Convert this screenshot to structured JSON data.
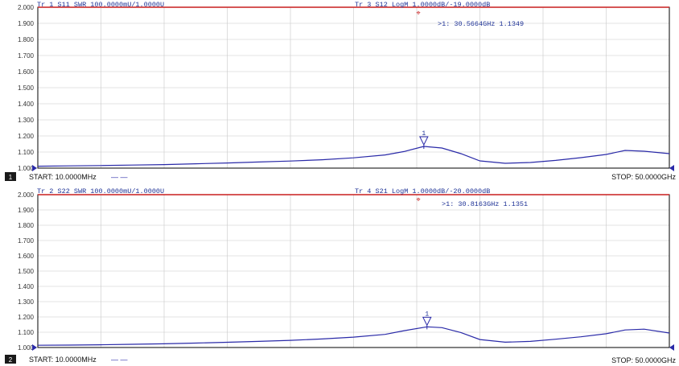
{
  "colors": {
    "background": "#ffffff",
    "grid": "#c8c8c8",
    "frame": "#000000",
    "trace_swr": "#2a2aa8",
    "trace_logm": "#c81e1e",
    "header_text": "#1e3296",
    "axis_text": "#333333",
    "footer_text": "#111111",
    "marker_text": "#1e3296"
  },
  "panels": [
    {
      "channel": "1",
      "header_left": "Tr 1  S11 SWR 100.0000mU/1.0000U",
      "header_right": "Tr 3  S12 LogM 1.0000dB/-19.0000dB",
      "marker_readout": ">1:   30.5664GHz 1.1349",
      "marker_label": "1",
      "start": "START: 10.0000MHz",
      "start_dashes": "— —",
      "stop": "STOP: 50.0000GHz",
      "y_ticks": [
        "2.000",
        "1.900",
        "1.800",
        "1.700",
        "1.600",
        "1.500",
        "1.400",
        "1.300",
        "1.200",
        "1.100",
        "1.000"
      ],
      "chart_data": {
        "type": "line",
        "x_unit": "GHz",
        "xlim": [
          0.01,
          50
        ],
        "ylim": [
          1.0,
          2.0
        ],
        "ylabel": "",
        "xlabel": "",
        "grid": true,
        "series": [
          {
            "x": [
              0.01,
              2.5,
              5,
              7.5,
              10,
              12.5,
              15,
              17.5,
              20,
              22.5,
              25,
              27.5,
              29,
              30.5664,
              32,
              33.5,
              35,
              37,
              39,
              41,
              43,
              45,
              46.5,
              48,
              50
            ],
            "y": [
              1.012,
              1.014,
              1.016,
              1.019,
              1.022,
              1.027,
              1.032,
              1.038,
              1.044,
              1.052,
              1.064,
              1.082,
              1.103,
              1.1349,
              1.125,
              1.09,
              1.045,
              1.03,
              1.035,
              1.048,
              1.065,
              1.085,
              1.11,
              1.105,
              1.09
            ]
          }
        ],
        "marker": {
          "x": 30.5664,
          "y": 1.1349
        }
      }
    },
    {
      "channel": "2",
      "header_left": "Tr 2  S22 SWR 100.0000mU/1.0000U",
      "header_right": "Tr 4  S21 LogM 1.0000dB/-20.0000dB",
      "marker_readout": ">1:   30.8163GHz 1.1351",
      "marker_label": "1",
      "start": "START: 10.0000MHz",
      "start_dashes": "— —",
      "stop": "STOP: 50.0000GHz",
      "y_ticks": [
        "2.000",
        "1.900",
        "1.800",
        "1.700",
        "1.600",
        "1.500",
        "1.400",
        "1.300",
        "1.200",
        "1.100",
        "1.000"
      ],
      "chart_data": {
        "type": "line",
        "x_unit": "GHz",
        "xlim": [
          0.01,
          50
        ],
        "ylim": [
          1.0,
          2.0
        ],
        "ylabel": "",
        "xlabel": "",
        "grid": true,
        "series": [
          {
            "x": [
              0.01,
              2.5,
              5,
              7.5,
              10,
              12.5,
              15,
              17.5,
              20,
              22.5,
              25,
              27.5,
              29,
              30.8163,
              32,
              33.5,
              35,
              37,
              39,
              41,
              43,
              45,
              46.5,
              48,
              50
            ],
            "y": [
              1.015,
              1.016,
              1.018,
              1.021,
              1.024,
              1.029,
              1.034,
              1.04,
              1.047,
              1.056,
              1.068,
              1.086,
              1.11,
              1.1351,
              1.13,
              1.098,
              1.052,
              1.035,
              1.04,
              1.054,
              1.07,
              1.09,
              1.115,
              1.12,
              1.095
            ]
          }
        ],
        "marker": {
          "x": 30.8163,
          "y": 1.1351
        }
      }
    }
  ]
}
